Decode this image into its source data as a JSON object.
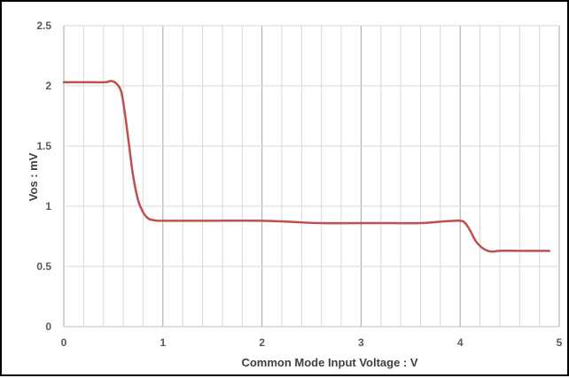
{
  "chart_data": {
    "type": "line",
    "xlabel": "Common Mode Input Voltage  :   V",
    "ylabel": "Vos :  mV",
    "xlim": [
      0,
      5
    ],
    "ylim": [
      0,
      2.5
    ],
    "x_ticks": [
      "0",
      "1",
      "2",
      "3",
      "4",
      "5"
    ],
    "y_ticks": [
      "0",
      "0.5",
      "1",
      "1.5",
      "2",
      "2.5"
    ],
    "x_minor_step": 0.2,
    "y_major_step": 0.5,
    "grid": true,
    "series": [
      {
        "color": "#c0504d",
        "x": [
          0,
          0.3,
          0.42,
          0.48,
          0.53,
          0.58,
          0.62,
          0.66,
          0.7,
          0.75,
          0.8,
          0.85,
          0.9,
          0.95,
          1.0,
          1.2,
          1.5,
          2.0,
          2.3,
          2.6,
          3.0,
          3.3,
          3.6,
          3.85,
          4.0,
          4.05,
          4.1,
          4.15,
          4.2,
          4.25,
          4.3,
          4.35,
          4.4,
          4.6,
          4.9
        ],
        "y": [
          2.03,
          2.03,
          2.03,
          2.04,
          2.02,
          1.95,
          1.75,
          1.5,
          1.25,
          1.05,
          0.95,
          0.9,
          0.885,
          0.88,
          0.88,
          0.88,
          0.88,
          0.88,
          0.87,
          0.86,
          0.86,
          0.86,
          0.86,
          0.875,
          0.88,
          0.86,
          0.8,
          0.72,
          0.67,
          0.64,
          0.625,
          0.625,
          0.63,
          0.63,
          0.63
        ]
      }
    ]
  }
}
